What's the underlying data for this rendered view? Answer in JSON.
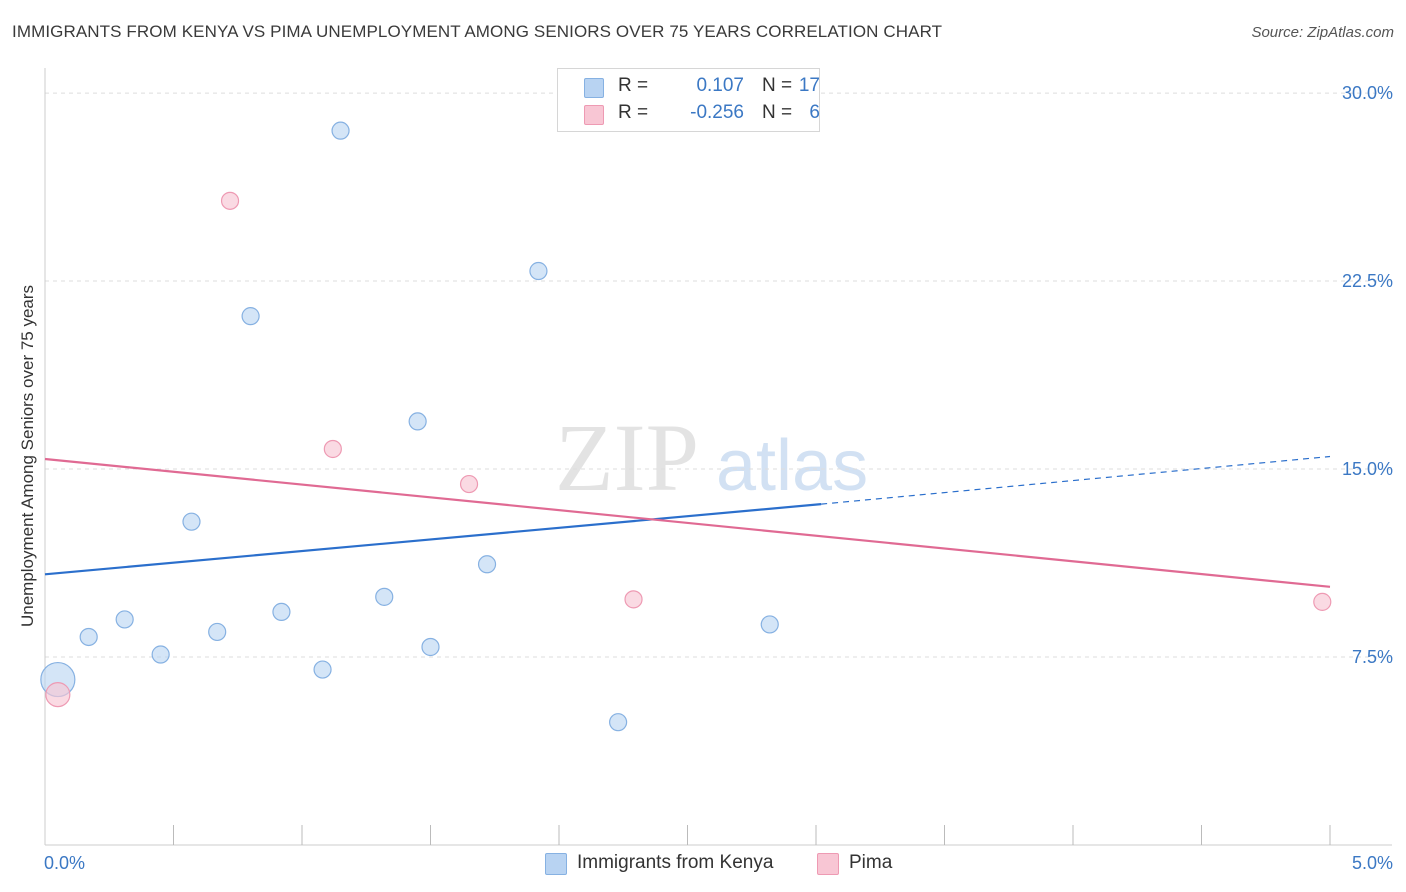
{
  "title": "IMMIGRANTS FROM KENYA VS PIMA UNEMPLOYMENT AMONG SENIORS OVER 75 YEARS CORRELATION CHART",
  "source": "Source: ZipAtlas.com",
  "watermark": {
    "zip": "ZIP",
    "atlas": "atlas"
  },
  "colors": {
    "kenya_fill": "#b8d3f2",
    "kenya_stroke": "#86b1e2",
    "kenya_line": "#2b6fcc",
    "pima_fill": "#f8c6d4",
    "pima_stroke": "#ee9ab3",
    "pima_line": "#e06a93",
    "tick_label": "#3b78c4"
  },
  "legend": {
    "rows": [
      {
        "r_label": "R =",
        "r_value": "0.107",
        "n_label": "N =",
        "n_value": "17"
      },
      {
        "r_label": "R =",
        "r_value": "-0.256",
        "n_label": "N =",
        "n_value": "6"
      }
    ]
  },
  "bottom_legend": {
    "kenya": "Immigrants from Kenya",
    "pima": "Pima"
  },
  "chart_data": {
    "type": "scatter",
    "title": "IMMIGRANTS FROM KENYA VS PIMA UNEMPLOYMENT AMONG SENIORS OVER 75 YEARS CORRELATION CHART",
    "xlabel": "",
    "ylabel": "Unemployment Among Seniors over 75 years",
    "xlim": [
      0,
      5
    ],
    "ylim": [
      0,
      31
    ],
    "x_tick_labels": [
      "0.0%",
      "5.0%"
    ],
    "y_ticks": [
      7.5,
      15.0,
      22.5,
      30.0
    ],
    "y_tick_labels": [
      "7.5%",
      "15.0%",
      "22.5%",
      "30.0%"
    ],
    "grid": "horizontal dashed",
    "legend_position": "top-center",
    "series": [
      {
        "name": "Immigrants from Kenya",
        "points": [
          {
            "x": 0.05,
            "y": 6.6,
            "size": "large"
          },
          {
            "x": 0.17,
            "y": 8.3
          },
          {
            "x": 0.31,
            "y": 9.0
          },
          {
            "x": 0.45,
            "y": 7.6
          },
          {
            "x": 0.57,
            "y": 12.9
          },
          {
            "x": 0.67,
            "y": 8.5
          },
          {
            "x": 0.8,
            "y": 21.1
          },
          {
            "x": 0.92,
            "y": 9.3
          },
          {
            "x": 1.08,
            "y": 7.0
          },
          {
            "x": 1.15,
            "y": 28.5
          },
          {
            "x": 1.32,
            "y": 9.9
          },
          {
            "x": 1.45,
            "y": 16.9
          },
          {
            "x": 1.5,
            "y": 7.9
          },
          {
            "x": 1.72,
            "y": 11.2
          },
          {
            "x": 1.92,
            "y": 22.9
          },
          {
            "x": 2.23,
            "y": 4.9
          },
          {
            "x": 2.82,
            "y": 8.8
          }
        ],
        "trend": {
          "x0": 0.0,
          "y0": 10.8,
          "x1": 3.02,
          "y1": 13.6,
          "dashed_to_x": 5.0,
          "dashed_to_y": 15.5
        }
      },
      {
        "name": "Pima",
        "points": [
          {
            "x": 0.05,
            "y": 6.0,
            "size": "medium"
          },
          {
            "x": 0.72,
            "y": 25.7
          },
          {
            "x": 1.12,
            "y": 15.8
          },
          {
            "x": 1.65,
            "y": 14.4
          },
          {
            "x": 2.29,
            "y": 9.8
          },
          {
            "x": 4.97,
            "y": 9.7
          }
        ],
        "trend": {
          "x0": 0.0,
          "y0": 15.4,
          "x1": 5.0,
          "y1": 10.3
        }
      }
    ]
  }
}
